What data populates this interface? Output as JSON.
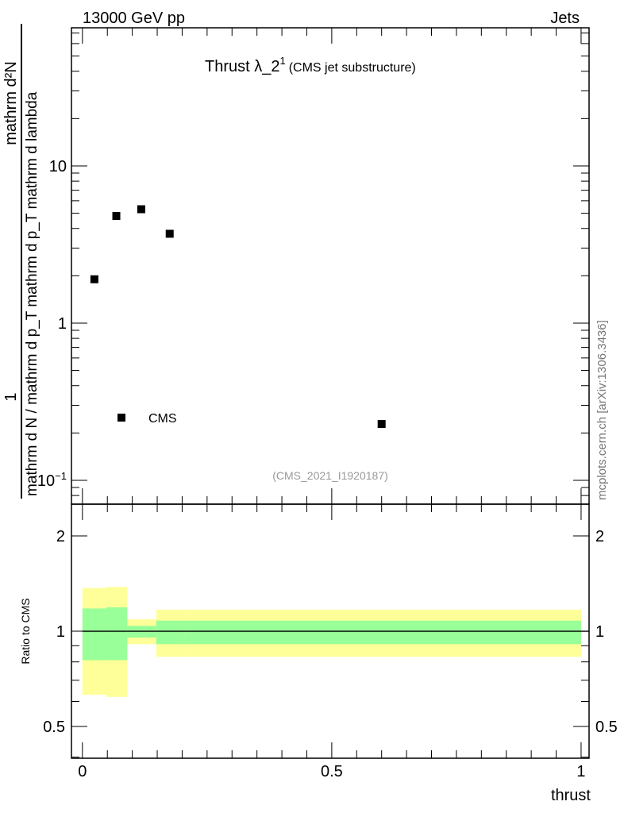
{
  "header": {
    "left": "13000 GeV pp",
    "right": "Jets"
  },
  "side_label": "mcplots.cern.ch [arXiv:1306.3436]",
  "chart_data": [
    {
      "type": "scatter",
      "title": "Thrust λ_2",
      "title_sup": "1",
      "subtitle": "(CMS jet substructure)",
      "analysis": "(CMS_2021_I1920187)",
      "ylabel_num": "mathrm d²N",
      "ylabel_den": "mathrm d N / mathrm d p_T mathrm d p_T mathrm d lambda",
      "ylabel_num_full": "1",
      "ylabel_top": "mathrm d N",
      "yscale": "log",
      "xlim": [
        -0.022,
        1.016
      ],
      "ylim": [
        0.0705,
        75.6
      ],
      "yticks": [
        {
          "v": 0.1,
          "label": "10",
          "sup": "−1"
        },
        {
          "v": 1,
          "label": "1",
          "sup": ""
        },
        {
          "v": 10,
          "label": "10",
          "sup": ""
        }
      ],
      "legend": {
        "label": "CMS",
        "placement": "bottom-left"
      },
      "series": [
        {
          "name": "CMS",
          "color": "#000000",
          "x": [
            0.024,
            0.068,
            0.118,
            0.175,
            0.6
          ],
          "y": [
            1.9,
            4.8,
            5.3,
            3.7,
            0.228
          ]
        }
      ]
    },
    {
      "type": "area",
      "ylabel": "Ratio to CMS",
      "xlabel": "thrust",
      "yscale": "log",
      "ylim": [
        0.397,
        2.52
      ],
      "xlim": [
        -0.022,
        1.016
      ],
      "xticks": [
        {
          "v": 0,
          "label": "0"
        },
        {
          "v": 0.5,
          "label": "0.5"
        },
        {
          "v": 1,
          "label": "1"
        }
      ],
      "yticks": [
        {
          "v": 0.5,
          "label": "0.5"
        },
        {
          "v": 1,
          "label": "1"
        },
        {
          "v": 2,
          "label": "2"
        }
      ],
      "bins": [
        [
          0,
          0.048
        ],
        [
          0.048,
          0.09
        ],
        [
          0.09,
          0.148
        ],
        [
          0.148,
          0.205
        ],
        [
          0.205,
          1.0
        ]
      ],
      "band_stat": {
        "color": "#99ff99",
        "lo": [
          0.81,
          0.81,
          0.955,
          0.91,
          0.91
        ],
        "hi": [
          1.18,
          1.19,
          1.04,
          1.08,
          1.08
        ]
      },
      "band_total": {
        "color": "#ffff99",
        "lo": [
          0.63,
          0.62,
          0.91,
          0.83,
          0.83
        ],
        "hi": [
          1.37,
          1.38,
          1.09,
          1.17,
          1.17
        ]
      }
    }
  ]
}
